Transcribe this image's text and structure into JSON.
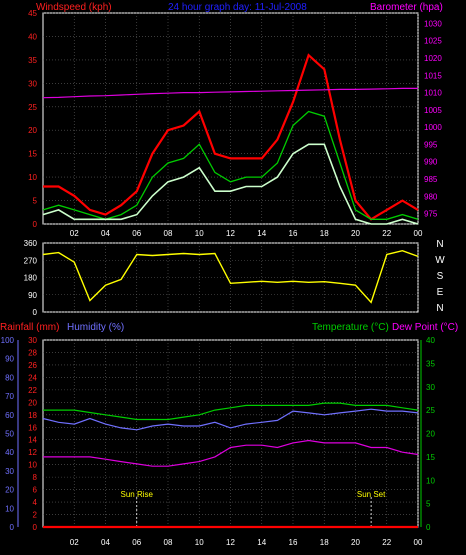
{
  "header": {
    "windspeed_label": "Windspeed (kph)",
    "title": "24 hour graph day: 11-Jul-2008",
    "barometer_label": "Barometer (hpa)"
  },
  "colors": {
    "windspeed_axis": "#ff2020",
    "barometer_axis": "#ff00ff",
    "gust": "#ff0000",
    "average": "#00cc00",
    "wind": "#ccffcc",
    "pressure": "#dd00dd",
    "direction": "#ffff00",
    "rain_axis": "#ff2020",
    "humidity": "#7070ff",
    "temperature": "#00cc00",
    "dewpoint": "#dd00dd",
    "grid": "#606060",
    "title_color": "#2020ff"
  },
  "bottom_header": {
    "rainfall_label": "Rainfall (mm)",
    "humidity_label": "Humidity (%)",
    "temperature_label": "Temperature (°C)",
    "dewpoint_label": "Dew Point (°C)"
  },
  "x_ticks": [
    "02",
    "04",
    "06",
    "08",
    "10",
    "12",
    "14",
    "16",
    "18",
    "20",
    "22",
    "00"
  ],
  "direction_letters": [
    "N",
    "W",
    "S",
    "E",
    "N"
  ],
  "annotations": {
    "sun_rise": "Sun Rise",
    "sun_set": "Sun Set"
  },
  "chart_data": [
    {
      "type": "line",
      "title": "24 hour graph day: 11-Jul-2008",
      "xlabel": "",
      "ylabel": "Windspeed (kph)",
      "y2label": "Barometer (hpa)",
      "x_range": [
        0,
        24
      ],
      "ylim": [
        0,
        45
      ],
      "y_ticks": [
        0,
        5,
        10,
        15,
        20,
        25,
        30,
        35,
        40,
        45
      ],
      "y2lim": [
        972,
        1033
      ],
      "y2_ticks": [
        975,
        980,
        985,
        990,
        995,
        1000,
        1005,
        1010,
        1015,
        1020,
        1025,
        1030
      ],
      "grid": true,
      "x": [
        0,
        1,
        2,
        3,
        4,
        5,
        6,
        7,
        8,
        9,
        10,
        11,
        12,
        13,
        14,
        15,
        16,
        17,
        18,
        19,
        20,
        21,
        22,
        23,
        24
      ],
      "series": [
        {
          "values": [
            8,
            8,
            6,
            3,
            2,
            4,
            7,
            15,
            20,
            21,
            24,
            15,
            14,
            14,
            14,
            18,
            26,
            36,
            33,
            18,
            5,
            1,
            3,
            5,
            3
          ]
        },
        {
          "values": [
            3,
            4,
            3,
            2,
            1,
            2,
            4,
            10,
            13,
            14,
            17,
            11,
            9,
            10,
            10,
            13,
            21,
            24,
            23,
            13,
            3,
            1,
            1,
            2,
            1
          ]
        },
        {
          "values": [
            2,
            3,
            1,
            1,
            1,
            1,
            2,
            6,
            9,
            10,
            12,
            7,
            7,
            8,
            8,
            10,
            15,
            17,
            17,
            8,
            1,
            0,
            0,
            1,
            0
          ]
        },
        {
          "axis": "right",
          "values": [
            1008.5,
            1008.6,
            1008.8,
            1009.0,
            1009.1,
            1009.3,
            1009.5,
            1009.7,
            1009.8,
            1010.0,
            1010.0,
            1010.1,
            1010.2,
            1010.3,
            1010.4,
            1010.5,
            1010.6,
            1010.7,
            1010.8,
            1010.9,
            1010.9,
            1011.0,
            1011.1,
            1011.2,
            1011.2
          ]
        }
      ]
    },
    {
      "type": "line",
      "ylabel": "",
      "y_ticks": [
        0,
        90,
        180,
        270,
        360
      ],
      "ylim": [
        0,
        360
      ],
      "x_range": [
        0,
        24
      ],
      "x": [
        0,
        1,
        2,
        3,
        4,
        5,
        6,
        7,
        8,
        9,
        10,
        11,
        12,
        13,
        14,
        15,
        16,
        17,
        18,
        19,
        20,
        21,
        22,
        23,
        24
      ],
      "series": [
        {
          "values": [
            300,
            310,
            260,
            60,
            140,
            170,
            300,
            295,
            300,
            305,
            300,
            305,
            150,
            155,
            160,
            155,
            160,
            155,
            158,
            150,
            140,
            50,
            300,
            320,
            290
          ]
        }
      ]
    },
    {
      "type": "line",
      "ylabel": "Rainfall (mm)",
      "y2label": "Temperature (°C)",
      "x_range": [
        0,
        24
      ],
      "ylim": [
        0,
        30
      ],
      "y_ticks": [
        0,
        2,
        4,
        6,
        8,
        10,
        12,
        14,
        16,
        18,
        20,
        22,
        24,
        26,
        28,
        30
      ],
      "humidity_ticks": [
        0,
        10,
        20,
        30,
        40,
        50,
        60,
        70,
        80,
        90,
        100
      ],
      "y2lim": [
        0,
        40
      ],
      "y2_ticks": [
        0,
        5,
        10,
        15,
        20,
        25,
        30,
        35,
        40
      ],
      "grid": true,
      "x": [
        0,
        1,
        2,
        3,
        4,
        5,
        6,
        7,
        8,
        9,
        10,
        11,
        12,
        13,
        14,
        15,
        16,
        17,
        18,
        19,
        20,
        21,
        22,
        23,
        24
      ],
      "series": [
        {
          "axis": "humidity",
          "values": [
            58,
            56,
            55,
            58,
            55,
            53,
            52,
            54,
            55,
            54,
            54,
            56,
            53,
            55,
            56,
            57,
            62,
            61,
            60,
            61,
            62,
            63,
            62,
            62,
            61
          ]
        },
        {
          "axis": "right",
          "values": [
            25,
            25,
            25,
            24.5,
            24,
            23.5,
            23,
            23,
            23,
            23.5,
            24,
            25,
            25.5,
            26,
            26,
            26,
            26,
            26,
            26.5,
            26.5,
            26,
            26,
            26,
            25.5,
            25
          ]
        },
        {
          "axis": "right",
          "values": [
            15,
            15,
            15,
            15,
            14.5,
            14,
            13.5,
            13,
            13,
            13.5,
            14,
            15,
            17,
            17.5,
            17.5,
            17,
            18,
            18.5,
            18,
            18,
            18,
            17,
            17,
            16,
            15.5
          ]
        },
        {
          "axis": "left",
          "values": [
            0,
            0,
            0,
            0,
            0,
            0,
            0,
            0,
            0,
            0,
            0,
            0,
            0,
            0,
            0,
            0,
            0,
            0,
            0,
            0,
            0,
            0,
            0,
            0,
            0
          ]
        }
      ]
    }
  ]
}
